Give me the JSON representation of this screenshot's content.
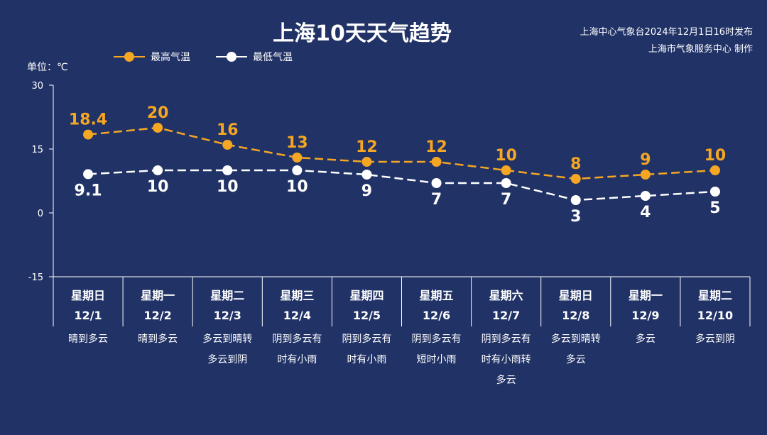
{
  "header": {
    "title": "上海10天天气趋势",
    "publisher_line1": "上海中心气象台2024年12月1日16时发布",
    "publisher_line2": "上海市气象服务中心 制作"
  },
  "unit_label": "单位：℃",
  "colors": {
    "background": "#213266",
    "high": "#F5A623",
    "low": "#FFFFFF"
  },
  "chart_data": {
    "type": "line",
    "ylim": [
      -15,
      30
    ],
    "yticks": [
      30,
      15,
      0,
      -15
    ],
    "legend_position": "top-left",
    "series": [
      {
        "name": "最高气温",
        "values": [
          18.4,
          20,
          16,
          13,
          12,
          12,
          10,
          8,
          9,
          10
        ],
        "labels": [
          "18.4",
          "20",
          "16",
          "13",
          "12",
          "12",
          "10",
          "8",
          "9",
          "10"
        ]
      },
      {
        "name": "最低气温",
        "values": [
          9.1,
          10,
          10,
          10,
          9,
          7,
          7,
          3,
          4,
          5
        ],
        "labels": [
          "9.1",
          "10",
          "10",
          "10",
          "9",
          "7",
          "7",
          "3",
          "4",
          "5"
        ]
      }
    ],
    "days": [
      {
        "weekday": "星期日",
        "date": "12/1",
        "weather": [
          "晴到多云"
        ]
      },
      {
        "weekday": "星期一",
        "date": "12/2",
        "weather": [
          "晴到多云"
        ]
      },
      {
        "weekday": "星期二",
        "date": "12/3",
        "weather": [
          "多云到晴转",
          "多云到阴"
        ]
      },
      {
        "weekday": "星期三",
        "date": "12/4",
        "weather": [
          "阴到多云有",
          "时有小雨"
        ]
      },
      {
        "weekday": "星期四",
        "date": "12/5",
        "weather": [
          "阴到多云有",
          "时有小雨"
        ]
      },
      {
        "weekday": "星期五",
        "date": "12/6",
        "weather": [
          "阴到多云有",
          "短时小雨"
        ]
      },
      {
        "weekday": "星期六",
        "date": "12/7",
        "weather": [
          "阴到多云有",
          "时有小雨转",
          "多云"
        ]
      },
      {
        "weekday": "星期日",
        "date": "12/8",
        "weather": [
          "多云到晴转",
          "多云"
        ]
      },
      {
        "weekday": "星期一",
        "date": "12/9",
        "weather": [
          "多云"
        ]
      },
      {
        "weekday": "星期二",
        "date": "12/10",
        "weather": [
          "多云到阴"
        ]
      }
    ]
  }
}
